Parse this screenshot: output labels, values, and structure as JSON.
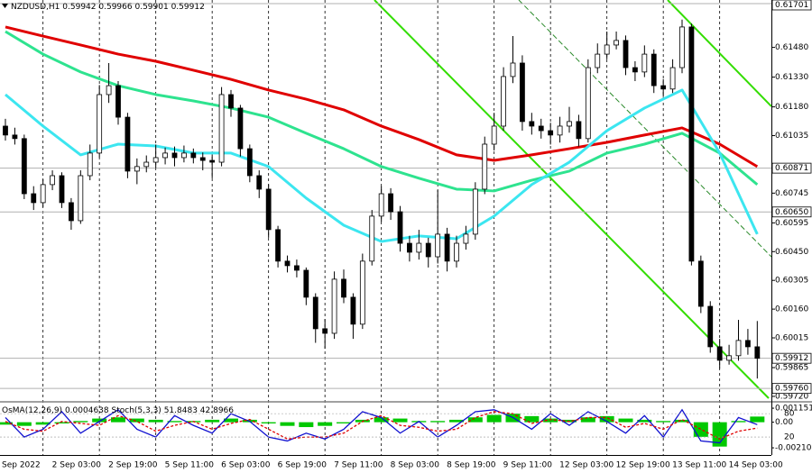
{
  "chart_data": [
    {
      "type": "candlestick",
      "title": "NZDUSD,H1",
      "header_values": [
        0.59942,
        0.59966,
        0.59901,
        0.59912
      ],
      "time_labels": [
        "Sep 2022",
        "2 Sep 03:00",
        "2 Sep 19:00",
        "5 Sep 11:00",
        "6 Sep 03:00",
        "6 Sep 19:00",
        "7 Sep 11:00",
        "8 Sep 03:00",
        "8 Sep 19:00",
        "9 Sep 11:00",
        "12 Sep 03:00",
        "12 Sep 19:00",
        "13 Sep 11:00",
        "14 Sep 03:00"
      ],
      "open": [
        0.61083,
        0.61038,
        0.6102,
        0.60742,
        0.60697,
        0.60788,
        0.60833,
        0.60697,
        0.60606,
        0.60833,
        0.60947,
        0.61242,
        0.61287,
        0.61128,
        0.60856,
        0.60879,
        0.60901,
        0.60924,
        0.60947,
        0.60924,
        0.60947,
        0.60924,
        0.6091,
        0.60901,
        0.61242,
        0.61174,
        0.60969,
        0.60833,
        0.60765,
        0.60561,
        0.60402,
        0.60379,
        0.60356,
        0.6022,
        0.60061,
        0.60038,
        0.60311,
        0.6022,
        0.60084,
        0.60402,
        0.60629,
        0.60742,
        0.60651,
        0.60492,
        0.60447,
        0.60492,
        0.60424,
        0.60538,
        0.60402,
        0.60492,
        0.60538,
        0.60765,
        0.60992,
        0.61083,
        0.61333,
        0.61401,
        0.61106,
        0.61083,
        0.6106,
        0.61038,
        0.61083,
        0.61106,
        0.6102,
        0.61378,
        0.61446,
        0.61492,
        0.61515,
        0.61378,
        0.61356,
        0.61446,
        0.61287,
        0.6127,
        0.61378,
        0.61583,
        0.60402,
        0.60174,
        0.5997,
        0.59902,
        0.59925,
        0.60002,
        0.5997
      ],
      "high": [
        0.6112,
        0.61075,
        0.6104,
        0.6078,
        0.60815,
        0.6086,
        0.6085,
        0.6072,
        0.6086,
        0.6099,
        0.6129,
        0.61401,
        0.6131,
        0.6115,
        0.6092,
        0.60935,
        0.6099,
        0.60975,
        0.6098,
        0.60985,
        0.6097,
        0.6095,
        0.6094,
        0.6128,
        0.61265,
        0.6119,
        0.6099,
        0.6086,
        0.6079,
        0.6058,
        0.6043,
        0.6041,
        0.6037,
        0.6024,
        0.6011,
        0.6035,
        0.6036,
        0.6024,
        0.6044,
        0.6066,
        0.6078,
        0.6077,
        0.6068,
        0.6053,
        0.6056,
        0.6052,
        0.6076,
        0.6057,
        0.6053,
        0.6058,
        0.608,
        0.6103,
        0.6115,
        0.6138,
        0.61537,
        0.6144,
        0.6115,
        0.6112,
        0.611,
        0.6113,
        0.6118,
        0.6114,
        0.6142,
        0.615,
        0.6156,
        0.6156,
        0.6154,
        0.6141,
        0.6149,
        0.6147,
        0.6132,
        0.6142,
        0.6162,
        0.616,
        0.6043,
        0.602,
        0.6001,
        0.5998,
        0.60106,
        0.6006,
        0.601
      ],
      "low": [
        0.6101,
        0.6099,
        0.60715,
        0.6066,
        0.60675,
        0.6076,
        0.6067,
        0.6056,
        0.6059,
        0.6081,
        0.60925,
        0.612,
        0.6109,
        0.6082,
        0.6079,
        0.6085,
        0.6087,
        0.6089,
        0.6088,
        0.609,
        0.60895,
        0.6086,
        0.6082,
        0.6088,
        0.6113,
        0.6093,
        0.608,
        0.6072,
        0.6052,
        0.6037,
        0.60345,
        0.6032,
        0.6018,
        0.5999,
        0.5996,
        0.6001,
        0.6019,
        0.6001,
        0.6006,
        0.6038,
        0.606,
        0.6061,
        0.6045,
        0.604,
        0.6041,
        0.6037,
        0.6039,
        0.6035,
        0.6037,
        0.6046,
        0.6051,
        0.6074,
        0.6096,
        0.6106,
        0.613,
        0.6106,
        0.6104,
        0.6102,
        0.6099,
        0.61,
        0.6105,
        0.6098,
        0.61,
        0.6135,
        0.6142,
        0.6147,
        0.6134,
        0.6131,
        0.6133,
        0.6125,
        0.6123,
        0.6125,
        0.6135,
        0.6038,
        0.6014,
        0.5994,
        0.5986,
        0.5988,
        0.599,
        0.5993,
        0.5981
      ],
      "close": [
        0.61038,
        0.6102,
        0.60742,
        0.60697,
        0.60788,
        0.60833,
        0.60697,
        0.60606,
        0.60833,
        0.60947,
        0.61242,
        0.61287,
        0.61128,
        0.60856,
        0.60879,
        0.60901,
        0.60924,
        0.60947,
        0.60924,
        0.60947,
        0.60924,
        0.6091,
        0.60901,
        0.61242,
        0.61174,
        0.60969,
        0.60833,
        0.60765,
        0.60561,
        0.60402,
        0.60379,
        0.60356,
        0.6022,
        0.60061,
        0.60038,
        0.60311,
        0.6022,
        0.60084,
        0.60402,
        0.60629,
        0.60742,
        0.60651,
        0.60492,
        0.60447,
        0.60492,
        0.60424,
        0.60538,
        0.60402,
        0.60492,
        0.60538,
        0.60765,
        0.60992,
        0.61083,
        0.61333,
        0.61401,
        0.61106,
        0.61083,
        0.6106,
        0.61038,
        0.61083,
        0.61106,
        0.6102,
        0.61378,
        0.61446,
        0.61492,
        0.61515,
        0.61378,
        0.61356,
        0.61446,
        0.61287,
        0.6127,
        0.61378,
        0.61583,
        0.60402,
        0.60174,
        0.5997,
        0.59902,
        0.59925,
        0.60002,
        0.5997,
        0.59912
      ],
      "up_color": "#ffffff",
      "down_color": "#000000",
      "series": [
        {
          "color": "#e00000",
          "x": [
            0,
            4,
            8,
            12,
            16,
            20,
            24,
            28,
            32,
            36,
            40,
            44,
            48,
            52,
            56,
            60,
            64,
            68,
            72,
            76,
            80
          ],
          "values": [
            0.61583,
            0.61537,
            0.61492,
            0.61446,
            0.6141,
            0.61365,
            0.61319,
            0.61265,
            0.61219,
            0.61165,
            0.61083,
            0.61015,
            0.60938,
            0.6091,
            0.60938,
            0.60969,
            0.61001,
            0.61038,
            0.61074,
            0.60992,
            0.60879
          ]
        },
        {
          "color": "#2ee38f",
          "x": [
            0,
            4,
            8,
            12,
            16,
            20,
            24,
            28,
            32,
            36,
            40,
            44,
            48,
            52,
            56,
            60,
            64,
            68,
            72,
            76,
            80
          ],
          "values": [
            0.6156,
            0.61446,
            0.61356,
            0.61287,
            0.61242,
            0.6121,
            0.61174,
            0.61128,
            0.61047,
            0.60969,
            0.60879,
            0.6082,
            0.60765,
            0.60756,
            0.6081,
            0.60856,
            0.60947,
            0.60992,
            0.61047,
            0.60947,
            0.60788
          ]
        },
        {
          "color": "#3ce6f0",
          "x": [
            0,
            4,
            8,
            12,
            16,
            20,
            24,
            28,
            32,
            36,
            40,
            44,
            48,
            52,
            56,
            60,
            64,
            68,
            72,
            76,
            80
          ],
          "values": [
            0.61242,
            0.61083,
            0.60938,
            0.60992,
            0.60983,
            0.60947,
            0.60947,
            0.60879,
            0.6072,
            0.60583,
            0.60501,
            0.60529,
            0.60515,
            0.60629,
            0.60788,
            0.60901,
            0.6106,
            0.61174,
            0.61265,
            0.60947,
            0.60538
          ]
        }
      ],
      "ylim": [
        0.59697,
        0.61719
      ],
      "yticks": [
        {
          "value": 0.6148,
          "label": "0.61480"
        },
        {
          "value": 0.6133,
          "label": "0.61330"
        },
        {
          "value": 0.6118,
          "label": "0.61180"
        },
        0.61035,
        0.60745,
        0.60595,
        {
          "value": 0.6045,
          "label": "0.60450"
        },
        0.60305,
        {
          "value": 0.6016,
          "label": "0.60160"
        },
        0.60015,
        0.59865,
        {
          "value": 0.5972,
          "label": "0.59720"
        }
      ],
      "levels": [
        0.61701,
        0.60871,
        {
          "value": 0.6065,
          "label": "0.60650"
        },
        0.59912,
        {
          "value": 0.5976,
          "label": "0.59760"
        }
      ],
      "grid": true
    },
    {
      "type": "oscillator",
      "x": [
        0,
        2,
        4,
        6,
        8,
        10,
        12,
        14,
        16,
        18,
        20,
        22,
        24,
        26,
        28,
        30,
        32,
        34,
        36,
        38,
        40,
        42,
        44,
        46,
        48,
        50,
        52,
        54,
        56,
        58,
        60,
        62,
        64,
        66,
        68,
        70,
        72,
        74,
        76,
        78,
        80
      ],
      "series": [
        {
          "name": "OsMA(12,26,9)",
          "color": "#00c800",
          "axis": "y",
          "values": [
            -0.0002,
            -0.0003,
            -0.0002,
            -0.0001,
            0.0001,
            0.0003,
            0.0004,
            0.0003,
            0.0002,
            0.0001,
            0.0001,
            0.0002,
            0.0003,
            0.0002,
            -0.0001,
            -0.0003,
            -0.0004,
            -0.0003,
            -0.0001,
            0.0002,
            0.0004,
            0.0003,
            0.0001,
            0.0001,
            0.0002,
            0.0004,
            0.0006,
            0.0007,
            0.0005,
            0.0003,
            0.0002,
            0.0004,
            0.0005,
            0.0003,
            0.0002,
            0.0001,
            0.0002,
            -0.0012,
            -0.002,
            0.0001,
            0.0004638
          ]
        },
        {
          "name": "Stoch(5,3,3)",
          "color": "#1010d0",
          "axis": "y2",
          "values": [
            70,
            20,
            40,
            85,
            30,
            60,
            90,
            40,
            20,
            75,
            50,
            30,
            80,
            60,
            20,
            10,
            30,
            15,
            40,
            85,
            70,
            30,
            60,
            20,
            50,
            85,
            90,
            70,
            40,
            80,
            50,
            85,
            60,
            30,
            75,
            20,
            90,
            10,
            5,
            70,
            51.8483
          ]
        },
        {
          "color": "#e00000",
          "axis": "y2",
          "values": [
            60,
            40,
            35,
            60,
            55,
            50,
            75,
            60,
            35,
            50,
            60,
            40,
            55,
            65,
            40,
            15,
            20,
            20,
            30,
            60,
            75,
            50,
            45,
            35,
            40,
            70,
            85,
            80,
            55,
            65,
            60,
            70,
            70,
            45,
            55,
            40,
            65,
            40,
            15,
            35,
            42.8966
          ]
        }
      ],
      "ylim": [
        -0.00269,
        0.0016
      ],
      "yticks": [
        0.0011517,
        {
          "value": 0,
          "label": "0.00"
        },
        -0.0021026
      ],
      "y2lim": [
        -26,
        108
      ],
      "y2ticks": [
        80,
        20
      ]
    }
  ]
}
